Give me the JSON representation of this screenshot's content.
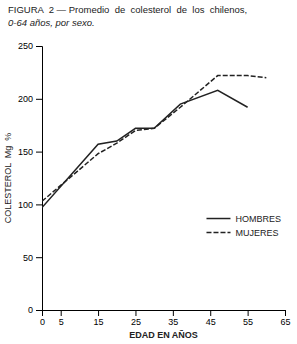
{
  "chart_data": {
    "type": "line",
    "title": "FIGURA  2 — Promedio  de  colesterol  de  los  chilenos,",
    "subtitle": "0-64 años, por sexo.",
    "x_label": "EDAD EN AÑOS",
    "y_label": "COLESTEROL  Mg  %",
    "series": [
      {
        "name": "HOMBRES",
        "color": "#222222",
        "line_style": "solid",
        "x": [
          0,
          15,
          20,
          25,
          30,
          37,
          47,
          55
        ],
        "values": [
          97,
          157,
          160,
          172,
          172,
          195,
          208,
          192
        ]
      },
      {
        "name": "MUJERES",
        "color": "#222222",
        "line_style": "dashed",
        "x": [
          0,
          15,
          20,
          25,
          30,
          37,
          47,
          55,
          60
        ],
        "values": [
          103,
          148,
          158,
          170,
          172,
          192,
          222,
          222,
          220
        ]
      }
    ],
    "xlim": [
      0,
      65
    ],
    "ylim": [
      0,
      250
    ],
    "xticks": [
      0,
      5,
      15,
      25,
      35,
      45,
      55,
      65
    ],
    "yticks": [
      0,
      50,
      100,
      150,
      200,
      250
    ],
    "grid": false,
    "legend": "right"
  }
}
